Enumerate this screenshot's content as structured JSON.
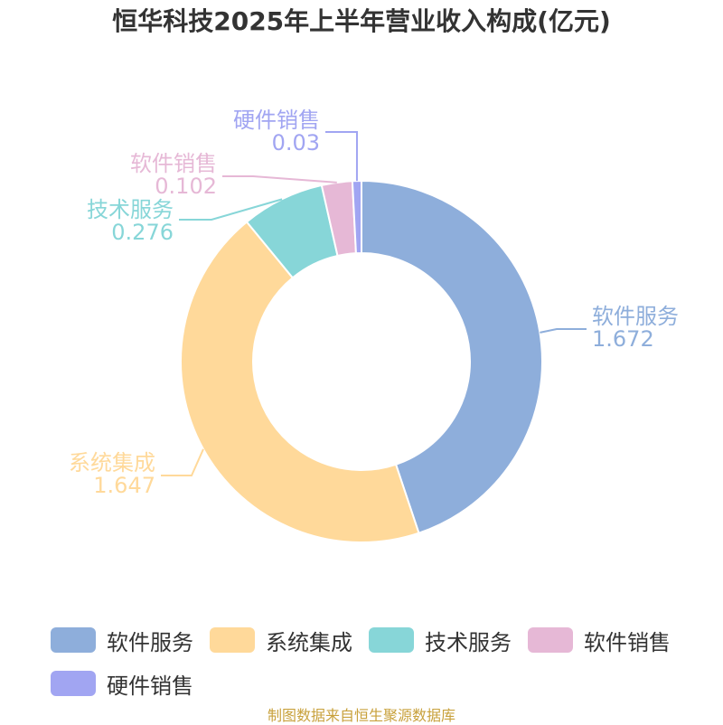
{
  "title": "恒华科技2025年上半年营业收入构成(亿元)",
  "source": "制图数据来自恒生聚源数据库",
  "chart_data": {
    "type": "pie",
    "variant": "donut",
    "title": "恒华科技2025年上半年营业收入构成(亿元)",
    "series": [
      {
        "name": "软件服务",
        "value": 1.672,
        "color": "#8eaedb"
      },
      {
        "name": "系统集成",
        "value": 1.647,
        "color": "#ffd99a"
      },
      {
        "name": "技术服务",
        "value": 0.276,
        "color": "#87d6d8"
      },
      {
        "name": "软件销售",
        "value": 0.102,
        "color": "#e6b8d6"
      },
      {
        "name": "硬件销售",
        "value": 0.03,
        "color": "#a1a5f2"
      }
    ],
    "legend_position": "bottom"
  }
}
